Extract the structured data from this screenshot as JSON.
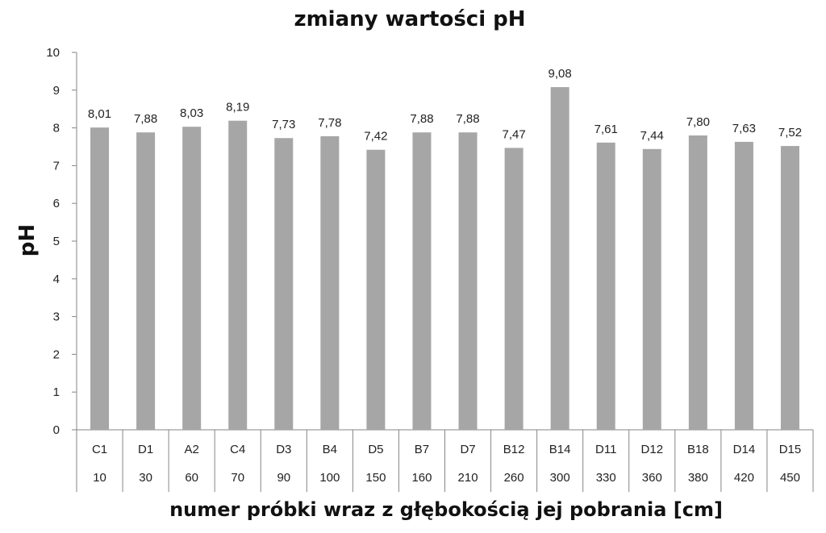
{
  "chart_data": {
    "type": "bar",
    "title": "zmiany wartości pH",
    "xlabel": "numer próbki wraz z głębokością jej pobrania [cm]",
    "ylabel": "pH",
    "ylim": [
      0,
      10
    ],
    "yticks": [
      "0",
      "1",
      "2",
      "3",
      "4",
      "5",
      "6",
      "7",
      "8",
      "9",
      "10"
    ],
    "categories": [
      "C1",
      "D1",
      "A2",
      "C4",
      "D3",
      "B4",
      "D5",
      "B7",
      "D7",
      "B12",
      "B14",
      "D11",
      "D12",
      "B18",
      "D14",
      "D15"
    ],
    "depths": [
      "10",
      "30",
      "60",
      "70",
      "90",
      "100",
      "150",
      "160",
      "210",
      "260",
      "300",
      "330",
      "360",
      "380",
      "420",
      "450"
    ],
    "values": [
      8.01,
      7.88,
      8.03,
      8.19,
      7.73,
      7.78,
      7.42,
      7.88,
      7.88,
      7.47,
      9.08,
      7.61,
      7.44,
      7.8,
      7.63,
      7.52
    ],
    "value_labels": [
      "8,01",
      "7,88",
      "8,03",
      "8,19",
      "7,73",
      "7,78",
      "7,42",
      "7,88",
      "7,88",
      "7,47",
      "9,08",
      "7,61",
      "7,44",
      "7,80",
      "7,63",
      "7,52"
    ],
    "bar_color": "#a6a6a6",
    "grid": false,
    "legend": "none"
  }
}
